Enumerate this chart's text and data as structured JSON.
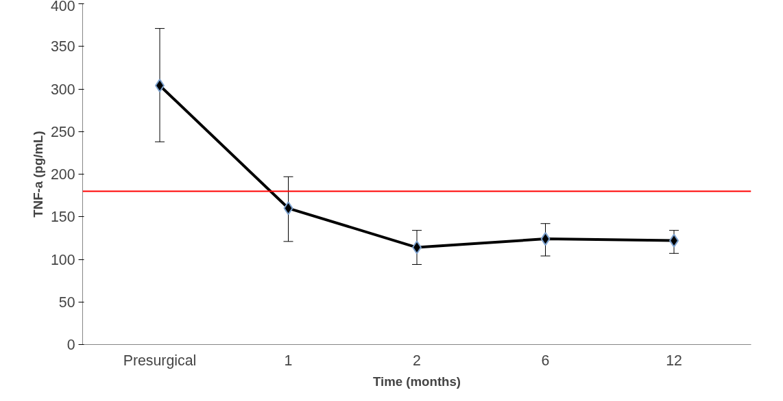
{
  "chart_data": {
    "type": "line",
    "xlabel": "Time (months)",
    "ylabel": "TNF-a (pg/mL)",
    "categories": [
      "Presurgical",
      "1",
      "2",
      "6",
      "12"
    ],
    "series": [
      {
        "color": "#000000",
        "values": [
          304,
          160,
          114,
          124,
          122
        ],
        "errors": [
          [
            238,
            371
          ],
          [
            121,
            197
          ],
          [
            94,
            134
          ],
          [
            104,
            142
          ],
          [
            107,
            134
          ]
        ]
      }
    ],
    "ylim": [
      0,
      400
    ],
    "yticks": [
      0,
      50,
      100,
      150,
      200,
      250,
      300,
      350,
      400
    ],
    "ref_lines": [
      {
        "axis": "y",
        "value": 180,
        "color": "#ff0000"
      }
    ],
    "grid": false,
    "marker": "diamond",
    "line_style": "solid"
  }
}
